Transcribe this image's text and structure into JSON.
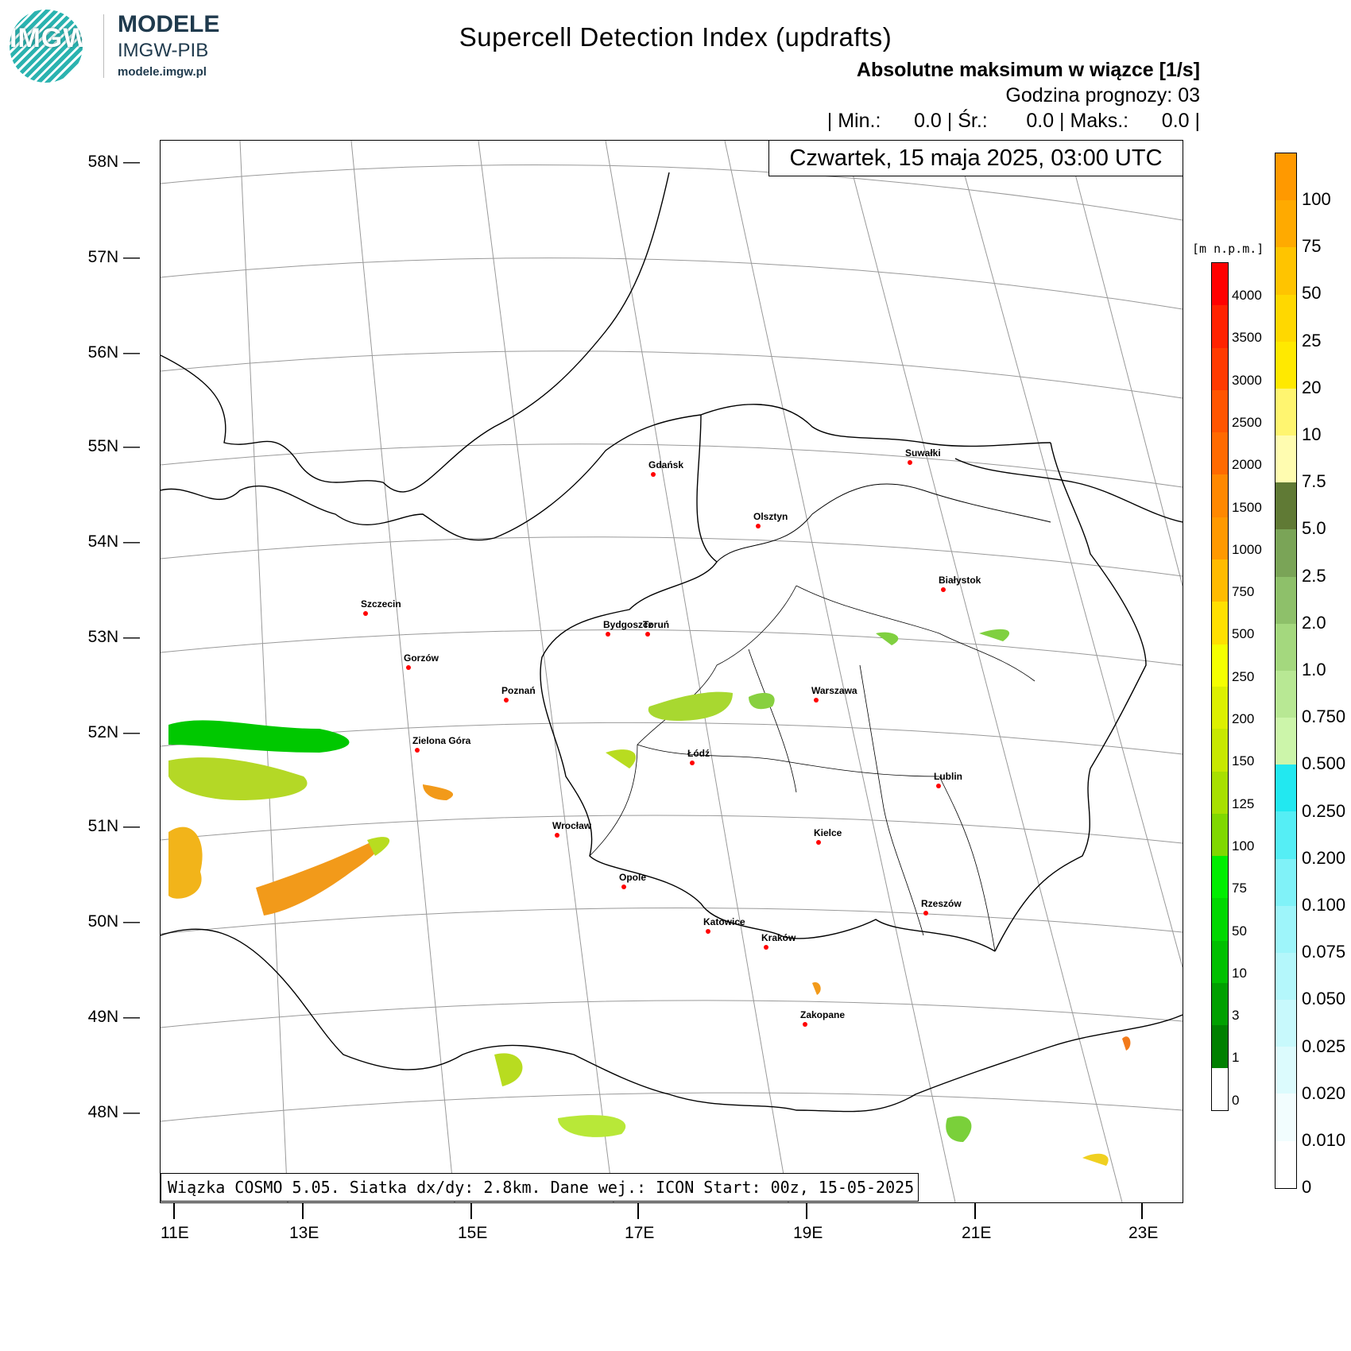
{
  "logo": {
    "text": "IMGW",
    "brand_title": "MODELE",
    "brand_subtitle": "IMGW-PIB",
    "brand_url": "modele.imgw.pl"
  },
  "title": "Supercell Detection Index (updrafts)",
  "subtitle1": "Absolutne maksimum w wiązce [1/s]",
  "subtitle2": "Godzina prognozy: 03",
  "stats": "| Min.:      0.0 | Śr.:       0.0 | Maks.:      0.0 |",
  "date": "Czwartek, 15 maja 2025, 03:00 UTC",
  "footer": "Wiązka COSMO 5.05. Siatka dx/dy: 2.8km. Dane wej.: ICON Start: 00z, 15-05-2025",
  "lat_labels": [
    "58N",
    "57N",
    "56N",
    "55N",
    "54N",
    "53N",
    "52N",
    "51N",
    "50N",
    "49N",
    "48N"
  ],
  "lon_labels": [
    "11E",
    "13E",
    "15E",
    "17E",
    "19E",
    "21E",
    "23E"
  ],
  "cities": [
    {
      "name": "Gdańsk"
    },
    {
      "name": "Suwałki"
    },
    {
      "name": "Olsztyn"
    },
    {
      "name": "Białystok"
    },
    {
      "name": "Szczecin"
    },
    {
      "name": "Bydgoszcz"
    },
    {
      "name": "Toruń"
    },
    {
      "name": "Gorzów"
    },
    {
      "name": "Poznań"
    },
    {
      "name": "Warszawa"
    },
    {
      "name": "Łódź"
    },
    {
      "name": "Zielona Góra"
    },
    {
      "name": "Lublin"
    },
    {
      "name": "Wrocław"
    },
    {
      "name": "Kielce"
    },
    {
      "name": "Opole"
    },
    {
      "name": "Rzeszów"
    },
    {
      "name": "Katowice"
    },
    {
      "name": "Kraków"
    },
    {
      "name": "Zakopane"
    }
  ],
  "elevation_scale": {
    "unit": "[m n.p.m.]",
    "ticks": [
      "4000",
      "3500",
      "3000",
      "2500",
      "2000",
      "1500",
      "1000",
      "750",
      "500",
      "250",
      "200",
      "150",
      "125",
      "100",
      "75",
      "50",
      "10",
      "3",
      "1",
      "0"
    ],
    "colors": [
      "#ff0000",
      "#ff2200",
      "#ff3a00",
      "#ff5500",
      "#ff6a00",
      "#ff8800",
      "#ff9900",
      "#ffbb00",
      "#ffe000",
      "#f5ff00",
      "#ddf000",
      "#c8e800",
      "#a8e000",
      "#80d800",
      "#00ee00",
      "#00d800",
      "#00c000",
      "#00a000",
      "#008000",
      "#ffffff"
    ]
  },
  "sdi_scale": {
    "ticks": [
      "100",
      "75",
      "50",
      "25",
      "20",
      "10",
      "7.5",
      "5.0",
      "2.5",
      "2.0",
      "1.0",
      "0.750",
      "0.500",
      "0.250",
      "0.200",
      "0.100",
      "0.075",
      "0.050",
      "0.025",
      "0.020",
      "0.010",
      "0"
    ],
    "colors": [
      "#ff9900",
      "#ffaa00",
      "#ffc400",
      "#ffd800",
      "#ffe900",
      "#fff570",
      "#fffcb0",
      "#607a35",
      "#7aa457",
      "#8ec06a",
      "#a4d87e",
      "#b8e894",
      "#ccf5aa",
      "#22e8f0",
      "#55eef5",
      "#80f2f8",
      "#9ef5fa",
      "#b4f7fb",
      "#c8f9fc",
      "#dcfbfd",
      "#f2fdfe",
      "#ffffff"
    ]
  }
}
